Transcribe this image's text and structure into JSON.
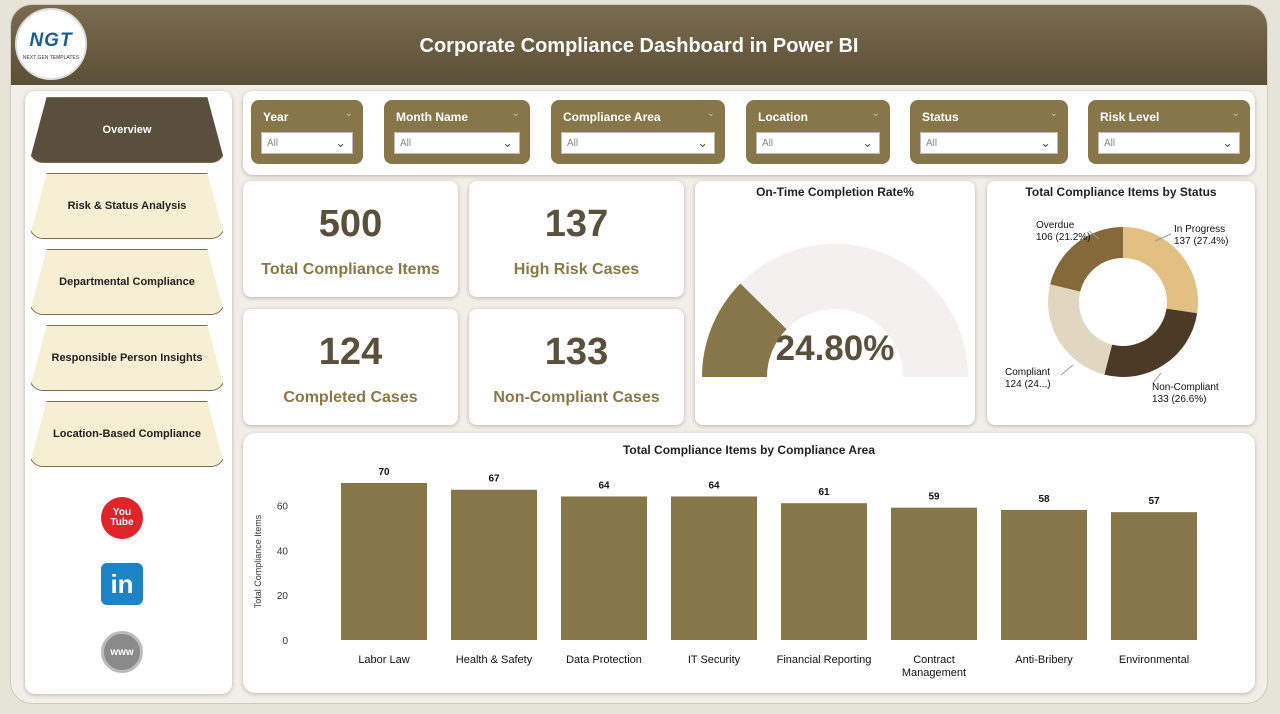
{
  "header": {
    "title": "Corporate Compliance Dashboard in Power BI",
    "logo_text": "NGT",
    "logo_subtext": "NEXT GEN TEMPLATES"
  },
  "sidebar": {
    "items": [
      {
        "label": "Overview",
        "active": true
      },
      {
        "label": "Risk & Status Analysis",
        "active": false
      },
      {
        "label": "Departmental Compliance",
        "active": false
      },
      {
        "label": "Responsible Person Insights",
        "active": false
      },
      {
        "label": "Location-Based Compliance",
        "active": false
      }
    ],
    "social": [
      {
        "icon": "youtube-icon",
        "text_top": "You",
        "text_bottom": "Tube"
      },
      {
        "icon": "linkedin-icon",
        "text": "in"
      },
      {
        "icon": "web-globe-icon",
        "text": "www"
      }
    ]
  },
  "filters": [
    {
      "label": "Year",
      "value": "All"
    },
    {
      "label": "Month Name",
      "value": "All"
    },
    {
      "label": "Compliance Area",
      "value": "All"
    },
    {
      "label": "Location",
      "value": "All"
    },
    {
      "label": "Status",
      "value": "All"
    },
    {
      "label": "Risk Level",
      "value": "All"
    }
  ],
  "kpis": [
    {
      "value": "500",
      "label": "Total Compliance Items"
    },
    {
      "value": "137",
      "label": "High Risk Cases"
    },
    {
      "value": "124",
      "label": "Completed Cases"
    },
    {
      "value": "133",
      "label": "Non-Compliant Cases"
    }
  ],
  "gauge": {
    "title": "On-Time Completion Rate%",
    "value_text": "24.80%",
    "fraction": 0.248,
    "fill_color": "#86764a",
    "track_color": "#f2f1ef"
  },
  "donut": {
    "title": "Total Compliance Items by Status",
    "slices": [
      {
        "name": "In Progress",
        "value": 137,
        "label": "137 (27.4%)",
        "color": "#e2bf83"
      },
      {
        "name": "Non-Compliant",
        "value": 133,
        "label": "133 (26.6%)",
        "color": "#4a3a26"
      },
      {
        "name": "Compliant",
        "value": 124,
        "label": "124 (24...)",
        "color": "#e1d6bf"
      },
      {
        "name": "Overdue",
        "value": 106,
        "label": "106 (21.2%)",
        "color": "#86693b"
      }
    ]
  },
  "chart_data": {
    "type": "bar",
    "title": "Total Compliance Items by Compliance Area",
    "xlabel": "",
    "ylabel": "Total Compliance Items",
    "categories": [
      "Labor Law",
      "Health & Safety",
      "Data Protection",
      "IT Security",
      "Financial Reporting",
      "Contract Management",
      "Anti-Bribery",
      "Environmental"
    ],
    "category_lines": [
      [
        "Labor Law"
      ],
      [
        "Health & Safety"
      ],
      [
        "Data Protection"
      ],
      [
        "IT Security"
      ],
      [
        "Financial Reporting"
      ],
      [
        "Contract",
        "Management"
      ],
      [
        "Anti-Bribery"
      ],
      [
        "Environmental"
      ]
    ],
    "values": [
      70,
      67,
      64,
      64,
      61,
      59,
      58,
      57
    ],
    "ylim": [
      0,
      70
    ],
    "yticks": [
      0,
      20,
      40,
      60
    ],
    "bar_color": "#86764a",
    "grid": false
  }
}
